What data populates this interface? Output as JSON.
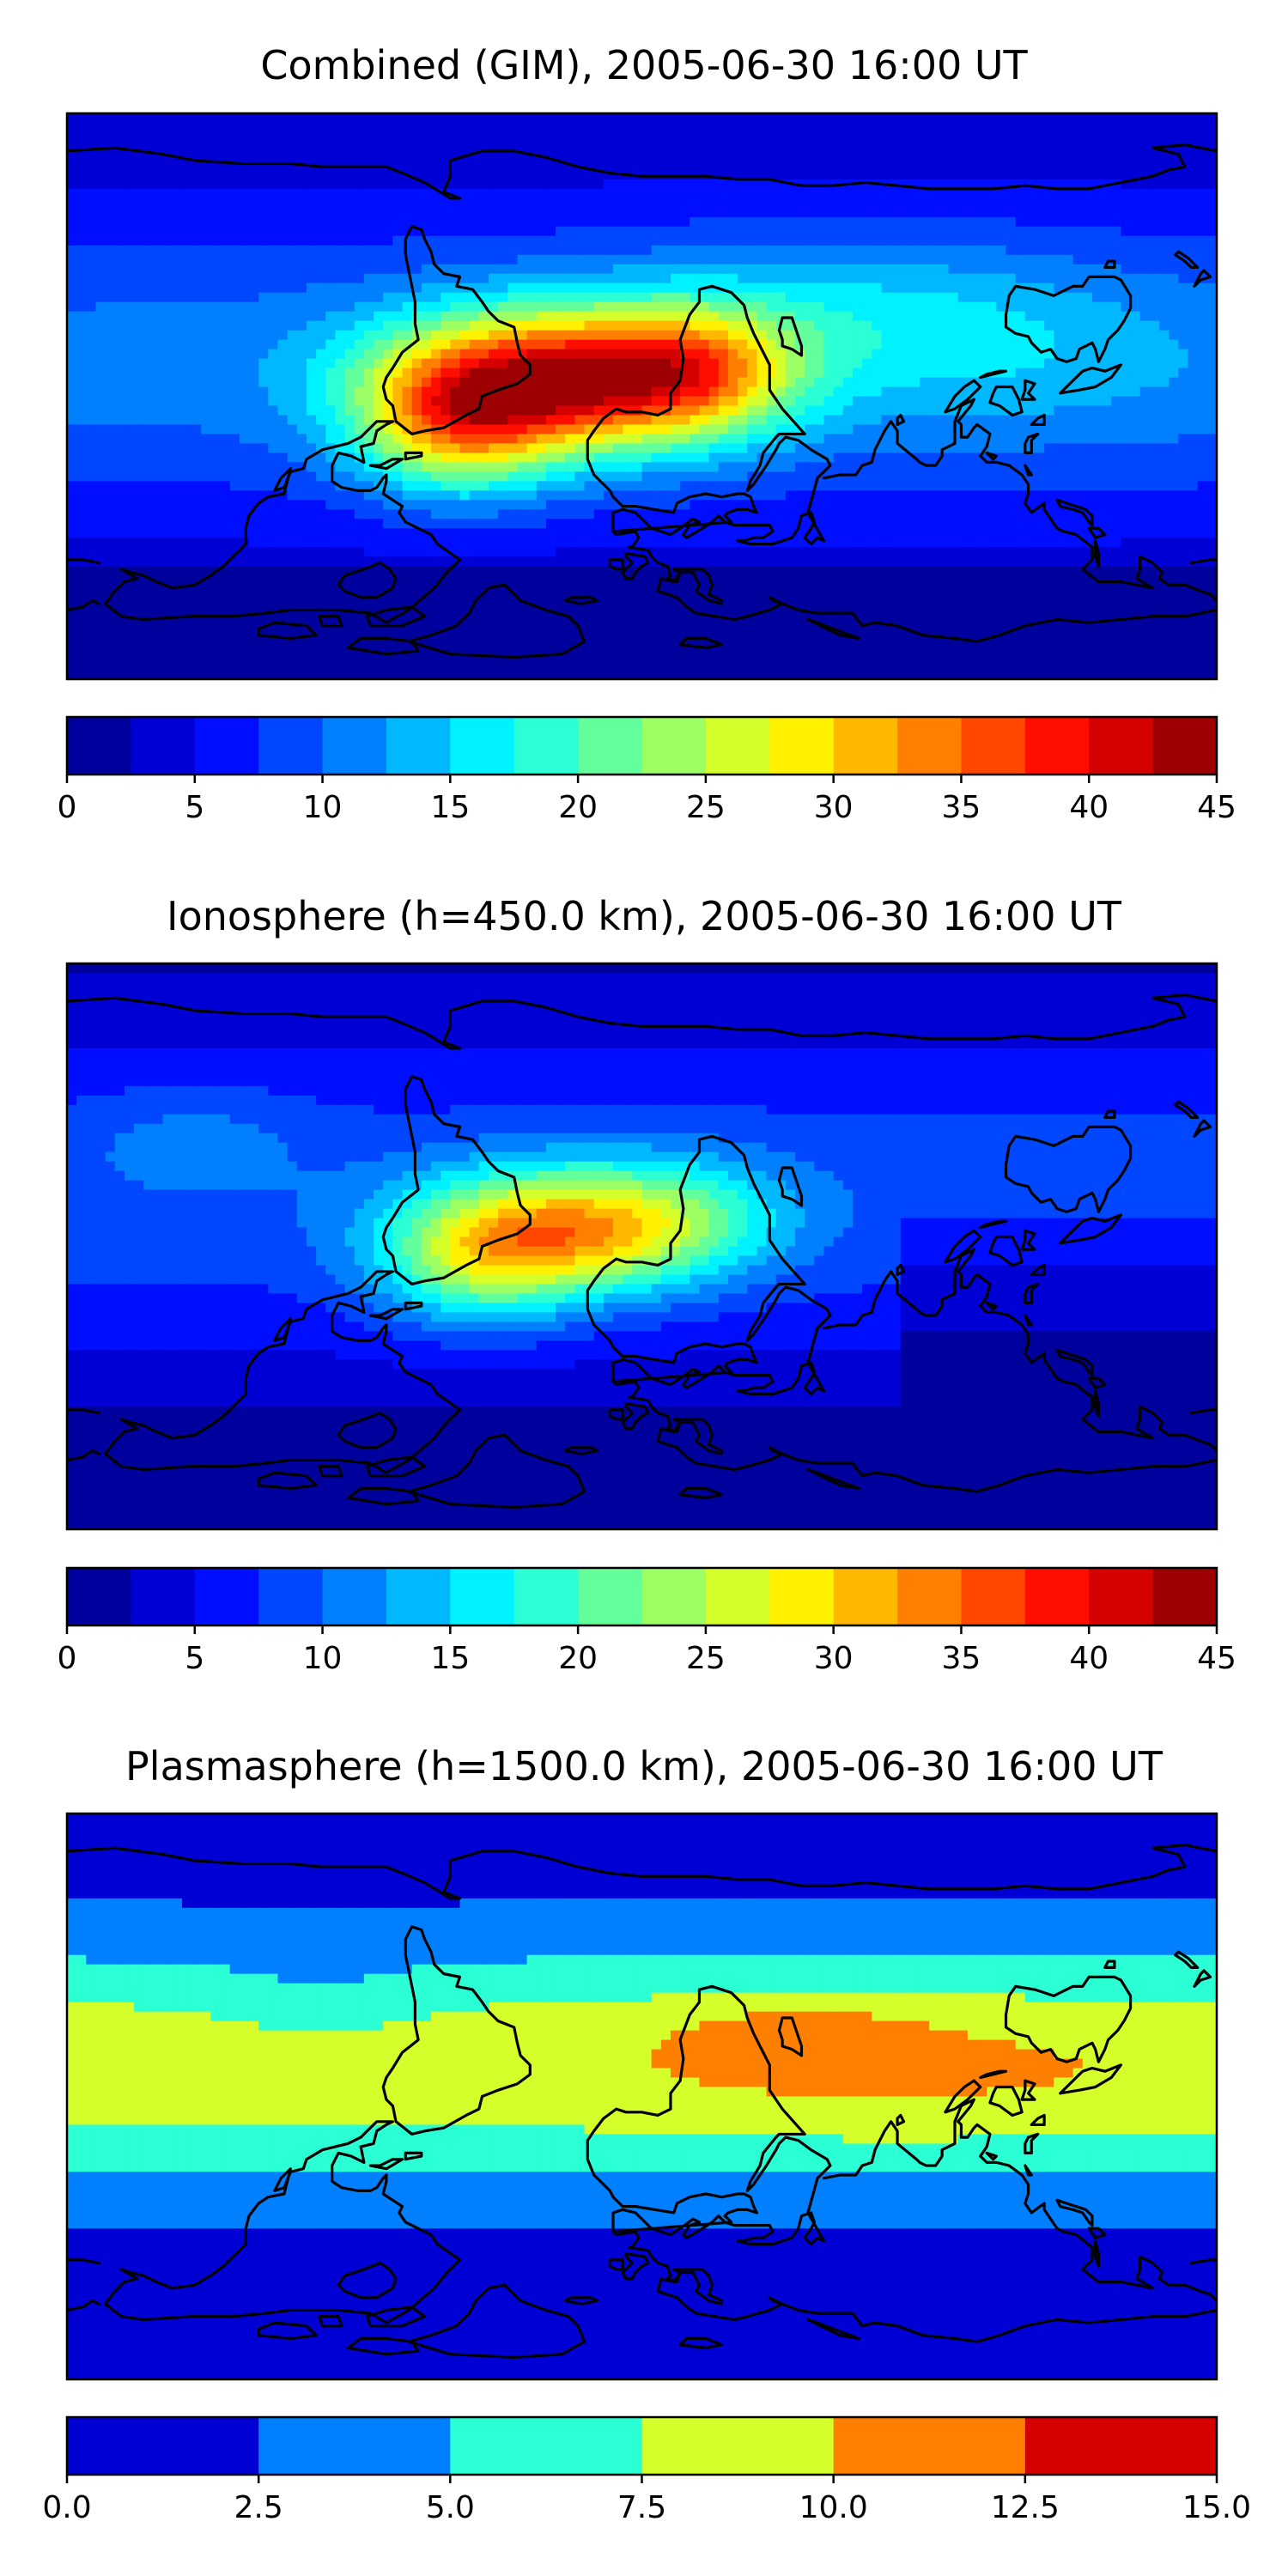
{
  "figure": {
    "panels": [
      {
        "id": "combined",
        "title": "Combined (GIM), 2005-06-30 16:00 UT",
        "colorbar": {
          "min": 0,
          "max": 45,
          "levels": [
            0,
            2.5,
            5,
            7.5,
            10,
            12.5,
            15,
            17.5,
            20,
            22.5,
            25,
            27.5,
            30,
            32.5,
            35,
            37.5,
            40,
            42.5,
            45
          ],
          "tick_labels": [
            "0",
            "5",
            "10",
            "15",
            "20",
            "25",
            "30",
            "35",
            "40",
            "45"
          ],
          "tick_values": [
            0,
            5,
            10,
            15,
            20,
            25,
            30,
            35,
            40,
            45
          ]
        },
        "features": [
          {
            "lon": -20,
            "lat": 5,
            "value": 41,
            "kind": "peak"
          },
          {
            "lon": -55,
            "lat": -10,
            "value": 35,
            "kind": "high"
          },
          {
            "lon": 20,
            "lat": 10,
            "value": 34,
            "kind": "high"
          }
        ]
      },
      {
        "id": "ionosphere",
        "title": "Ionosphere  (h=450.0 km), 2005-06-30 16:00 UT",
        "colorbar": {
          "min": 0,
          "max": 45,
          "levels": [
            0,
            2.5,
            5,
            7.5,
            10,
            12.5,
            15,
            17.5,
            20,
            22.5,
            25,
            27.5,
            30,
            32.5,
            35,
            37.5,
            40,
            42.5,
            45
          ],
          "tick_labels": [
            "0",
            "5",
            "10",
            "15",
            "20",
            "25",
            "30",
            "35",
            "40",
            "45"
          ],
          "tick_values": [
            0,
            5,
            10,
            15,
            20,
            25,
            30,
            35,
            40,
            45
          ]
        },
        "features": [
          {
            "lon": -20,
            "lat": 5,
            "value": 33,
            "kind": "peak"
          },
          {
            "lon": -50,
            "lat": -10,
            "value": 27,
            "kind": "high"
          }
        ]
      },
      {
        "id": "plasmasphere",
        "title": "Plasmasphere (h=1500.0 km), 2005-06-30 16:00 UT",
        "colorbar": {
          "min": 0,
          "max": 15,
          "levels": [
            0,
            2.5,
            5,
            7.5,
            10,
            12.5,
            15
          ],
          "tick_labels": [
            "0.0",
            "2.5",
            "5.0",
            "7.5",
            "10.0",
            "12.5",
            "15.0"
          ],
          "tick_values": [
            0,
            2.5,
            5,
            7.5,
            10,
            12.5,
            15
          ]
        },
        "features": [
          {
            "lon": 45,
            "lat": 20,
            "value": 11,
            "kind": "peak"
          }
        ]
      }
    ],
    "colormap": "jet"
  }
}
